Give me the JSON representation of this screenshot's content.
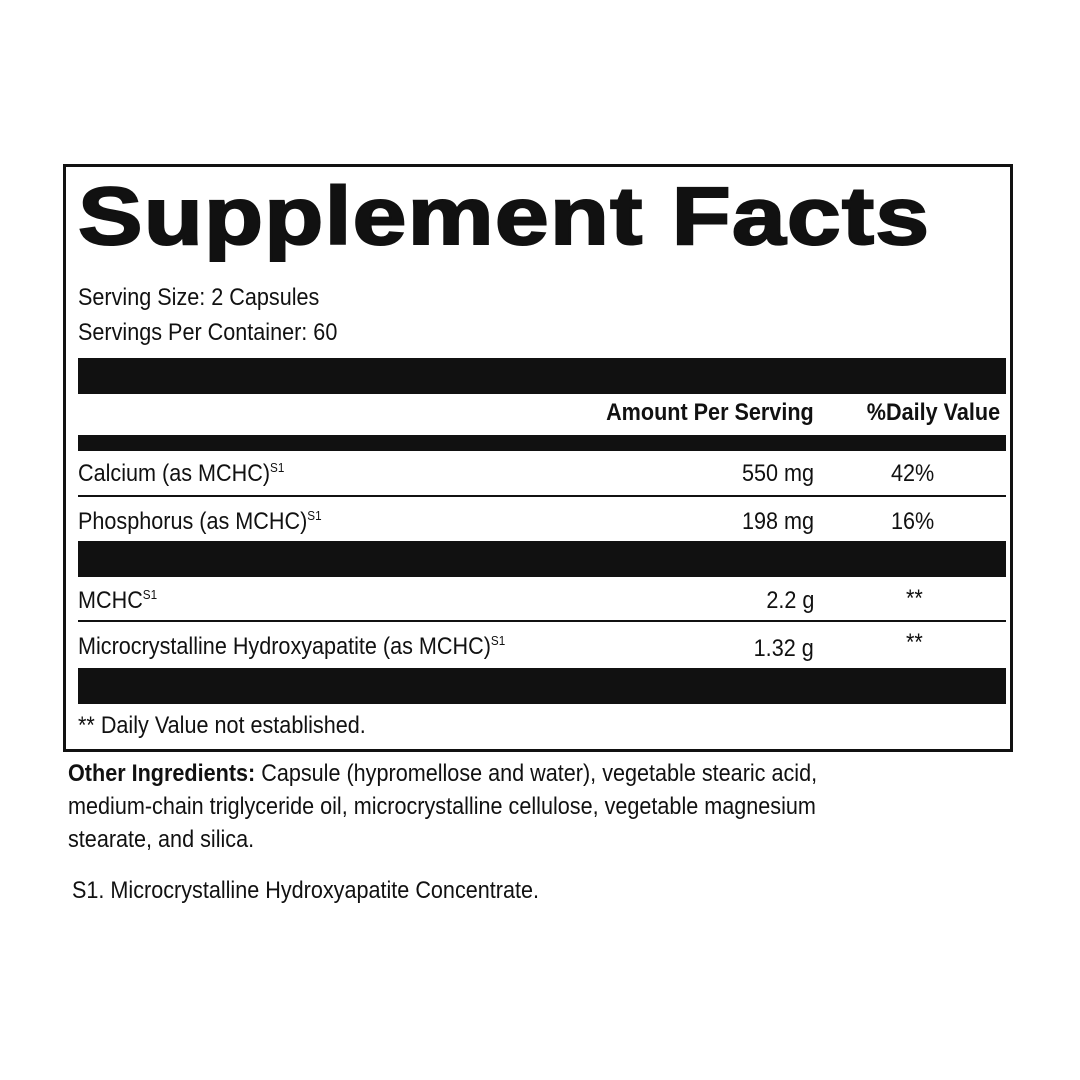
{
  "title": "Supplement Facts",
  "serving_size": "Serving Size: 2 Capsules",
  "servings_per_container": "Servings Per Container: 60",
  "headers": {
    "amount": "Amount Per Serving",
    "dv": "%Daily Value"
  },
  "rows": [
    {
      "name": "Calcium (as MCHC)",
      "sup": "S1",
      "amount": "550 mg",
      "dv": "42%"
    },
    {
      "name": "Phosphorus (as MCHC)",
      "sup": "S1",
      "amount": "198 mg",
      "dv": "16%"
    },
    {
      "name": "MCHC",
      "sup": "S1",
      "amount": "2.2 g",
      "dv": "**"
    },
    {
      "name": "Microcrystalline Hydroxyapatite (as MCHC)",
      "sup": "S1",
      "amount": "1.32 g",
      "dv": "**"
    }
  ],
  "footnote": "** Daily Value not established.",
  "other_label": "Other Ingredients:",
  "other_lines": [
    " Capsule (hypromellose and water), vegetable stearic acid,",
    "medium-chain triglyceride oil, microcrystalline cellulose, vegetable magnesium",
    "stearate, and silica."
  ],
  "s1_note": "S1. Microcrystalline Hydroxyapatite Concentrate."
}
